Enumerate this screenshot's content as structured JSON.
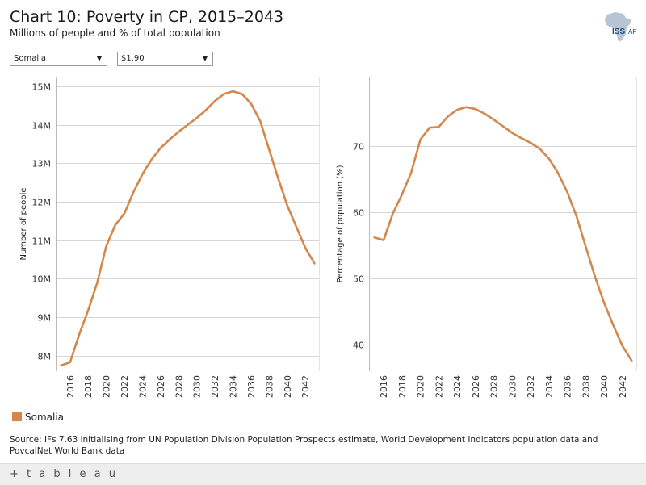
{
  "header": {
    "title": "Chart 10: Poverty in CP, 2015–2043",
    "subtitle": "Millions of people and % of total population",
    "logo_text": "ISS",
    "logo_suffix": "AF"
  },
  "filters": {
    "country": "Somalia",
    "threshold": "$1.90"
  },
  "colors": {
    "series": "#d4874a",
    "grid": "#d6d6d6",
    "axis": "#bbbbbb"
  },
  "legend": {
    "label": "Somalia"
  },
  "source": "Source: IFs 7.63 initialising from UN Population Division Population Prospects estimate, World Development Indicators population data and PovcalNet World Bank data",
  "footer": {
    "brand": "+ t a b l e a u"
  },
  "chart_data": [
    {
      "type": "line",
      "ylabel": "Number of people",
      "ylim": [
        7.6,
        15.25
      ],
      "yticks": [
        8,
        9,
        10,
        11,
        12,
        13,
        14,
        15
      ],
      "ytick_labels": [
        "8M",
        "9M",
        "10M",
        "11M",
        "12M",
        "13M",
        "14M",
        "15M"
      ],
      "xlim": [
        2014.5,
        2043.5
      ],
      "xticks": [
        2016,
        2018,
        2020,
        2022,
        2024,
        2026,
        2028,
        2030,
        2032,
        2034,
        2036,
        2038,
        2040,
        2042
      ],
      "xtick_labels": [
        "2016",
        "2018",
        "2020",
        "2022",
        "2024",
        "2026",
        "2028",
        "2030",
        "2032",
        "2034",
        "2036",
        "2038",
        "2040",
        "2042"
      ],
      "series": [
        {
          "name": "Somalia",
          "x": [
            2015,
            2016,
            2017,
            2018,
            2019,
            2020,
            2021,
            2022,
            2023,
            2024,
            2025,
            2026,
            2027,
            2028,
            2029,
            2030,
            2031,
            2032,
            2033,
            2034,
            2035,
            2036,
            2037,
            2038,
            2039,
            2040,
            2041,
            2042,
            2043
          ],
          "values": [
            7.75,
            7.83,
            8.55,
            9.18,
            9.9,
            10.85,
            11.4,
            11.7,
            12.25,
            12.72,
            13.1,
            13.4,
            13.62,
            13.82,
            14.0,
            14.18,
            14.38,
            14.62,
            14.8,
            14.87,
            14.8,
            14.55,
            14.1,
            13.35,
            12.6,
            11.9,
            11.35,
            10.8,
            10.4
          ]
        }
      ]
    },
    {
      "type": "line",
      "ylabel": "Percentage of population (%)",
      "ylim": [
        36,
        80.5
      ],
      "yticks": [
        40,
        50,
        60,
        70
      ],
      "ytick_labels": [
        "40",
        "50",
        "60",
        "70"
      ],
      "xlim": [
        2014.5,
        2043.5
      ],
      "xticks": [
        2016,
        2018,
        2020,
        2022,
        2024,
        2026,
        2028,
        2030,
        2032,
        2034,
        2036,
        2038,
        2040,
        2042
      ],
      "xtick_labels": [
        "2016",
        "2018",
        "2020",
        "2022",
        "2024",
        "2026",
        "2028",
        "2030",
        "2032",
        "2034",
        "2036",
        "2038",
        "2040",
        "2042"
      ],
      "series": [
        {
          "name": "Somalia",
          "x": [
            2015,
            2016,
            2017,
            2018,
            2019,
            2020,
            2021,
            2022,
            2023,
            2024,
            2025,
            2026,
            2027,
            2028,
            2029,
            2030,
            2031,
            2032,
            2033,
            2034,
            2035,
            2036,
            2037,
            2038,
            2039,
            2040,
            2041,
            2042,
            2043
          ],
          "values": [
            56.2,
            55.8,
            59.8,
            62.7,
            66.0,
            71.0,
            72.8,
            72.9,
            74.5,
            75.5,
            75.9,
            75.6,
            74.9,
            74.0,
            73.0,
            72.0,
            71.2,
            70.5,
            69.6,
            68.1,
            65.9,
            63.0,
            59.4,
            54.8,
            50.3,
            46.3,
            42.9,
            39.8,
            37.6
          ]
        }
      ]
    }
  ]
}
